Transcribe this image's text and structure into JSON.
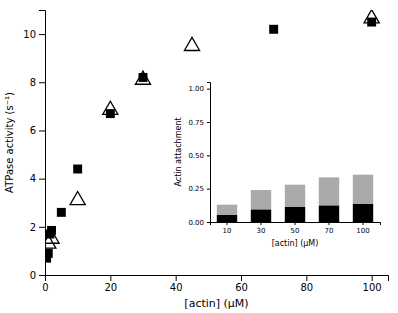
{
  "chart_data": [
    {
      "type": "scatter",
      "xlabel": "[actin] (μM)",
      "ylabel": "ATPase activity (s⁻¹)",
      "xlim": [
        0,
        105
      ],
      "ylim": [
        0,
        11
      ],
      "xticks": [
        0,
        20,
        40,
        60,
        80,
        100
      ],
      "yticks": [
        0,
        2,
        4,
        6,
        8,
        10
      ],
      "series": [
        {
          "x": [
            0.5,
            1.0,
            1.5,
            2.0,
            5.0,
            10.0,
            20.0,
            30.0,
            70.0,
            100.0
          ],
          "values": [
            0.7,
            0.9,
            1.7,
            1.85,
            2.6,
            4.4,
            6.7,
            8.2,
            10.2,
            10.5
          ],
          "color": "black",
          "marker": "square"
        },
        {
          "x": [
            1.0,
            2.0,
            10.0,
            20.0,
            30.0,
            45.0,
            100.0
          ],
          "values": [
            1.3,
            1.5,
            3.1,
            6.85,
            8.1,
            9.5,
            10.65
          ],
          "color": "black",
          "marker": "triangle-open"
        }
      ]
    },
    {
      "type": "bar",
      "stacked": true,
      "xlabel": "[actin] (μM)",
      "ylabel": "Actin attachment",
      "categories": [
        "10",
        "30",
        "50",
        "70",
        "100"
      ],
      "ylim": [
        0,
        1.05
      ],
      "yticks": [
        {
          "value": 0,
          "label": "0.00"
        },
        {
          "value": 0.25,
          "label": "0.25"
        },
        {
          "value": 0.5,
          "label": "0.50"
        },
        {
          "value": 0.75,
          "label": "0.75"
        },
        {
          "value": 1,
          "label": "1.00"
        }
      ],
      "series": [
        {
          "values": [
            0.055,
            0.095,
            0.115,
            0.125,
            0.135
          ],
          "color": "#000000"
        },
        {
          "values": [
            0.075,
            0.145,
            0.165,
            0.21,
            0.22
          ],
          "color": "#aaaaaa"
        }
      ]
    }
  ]
}
